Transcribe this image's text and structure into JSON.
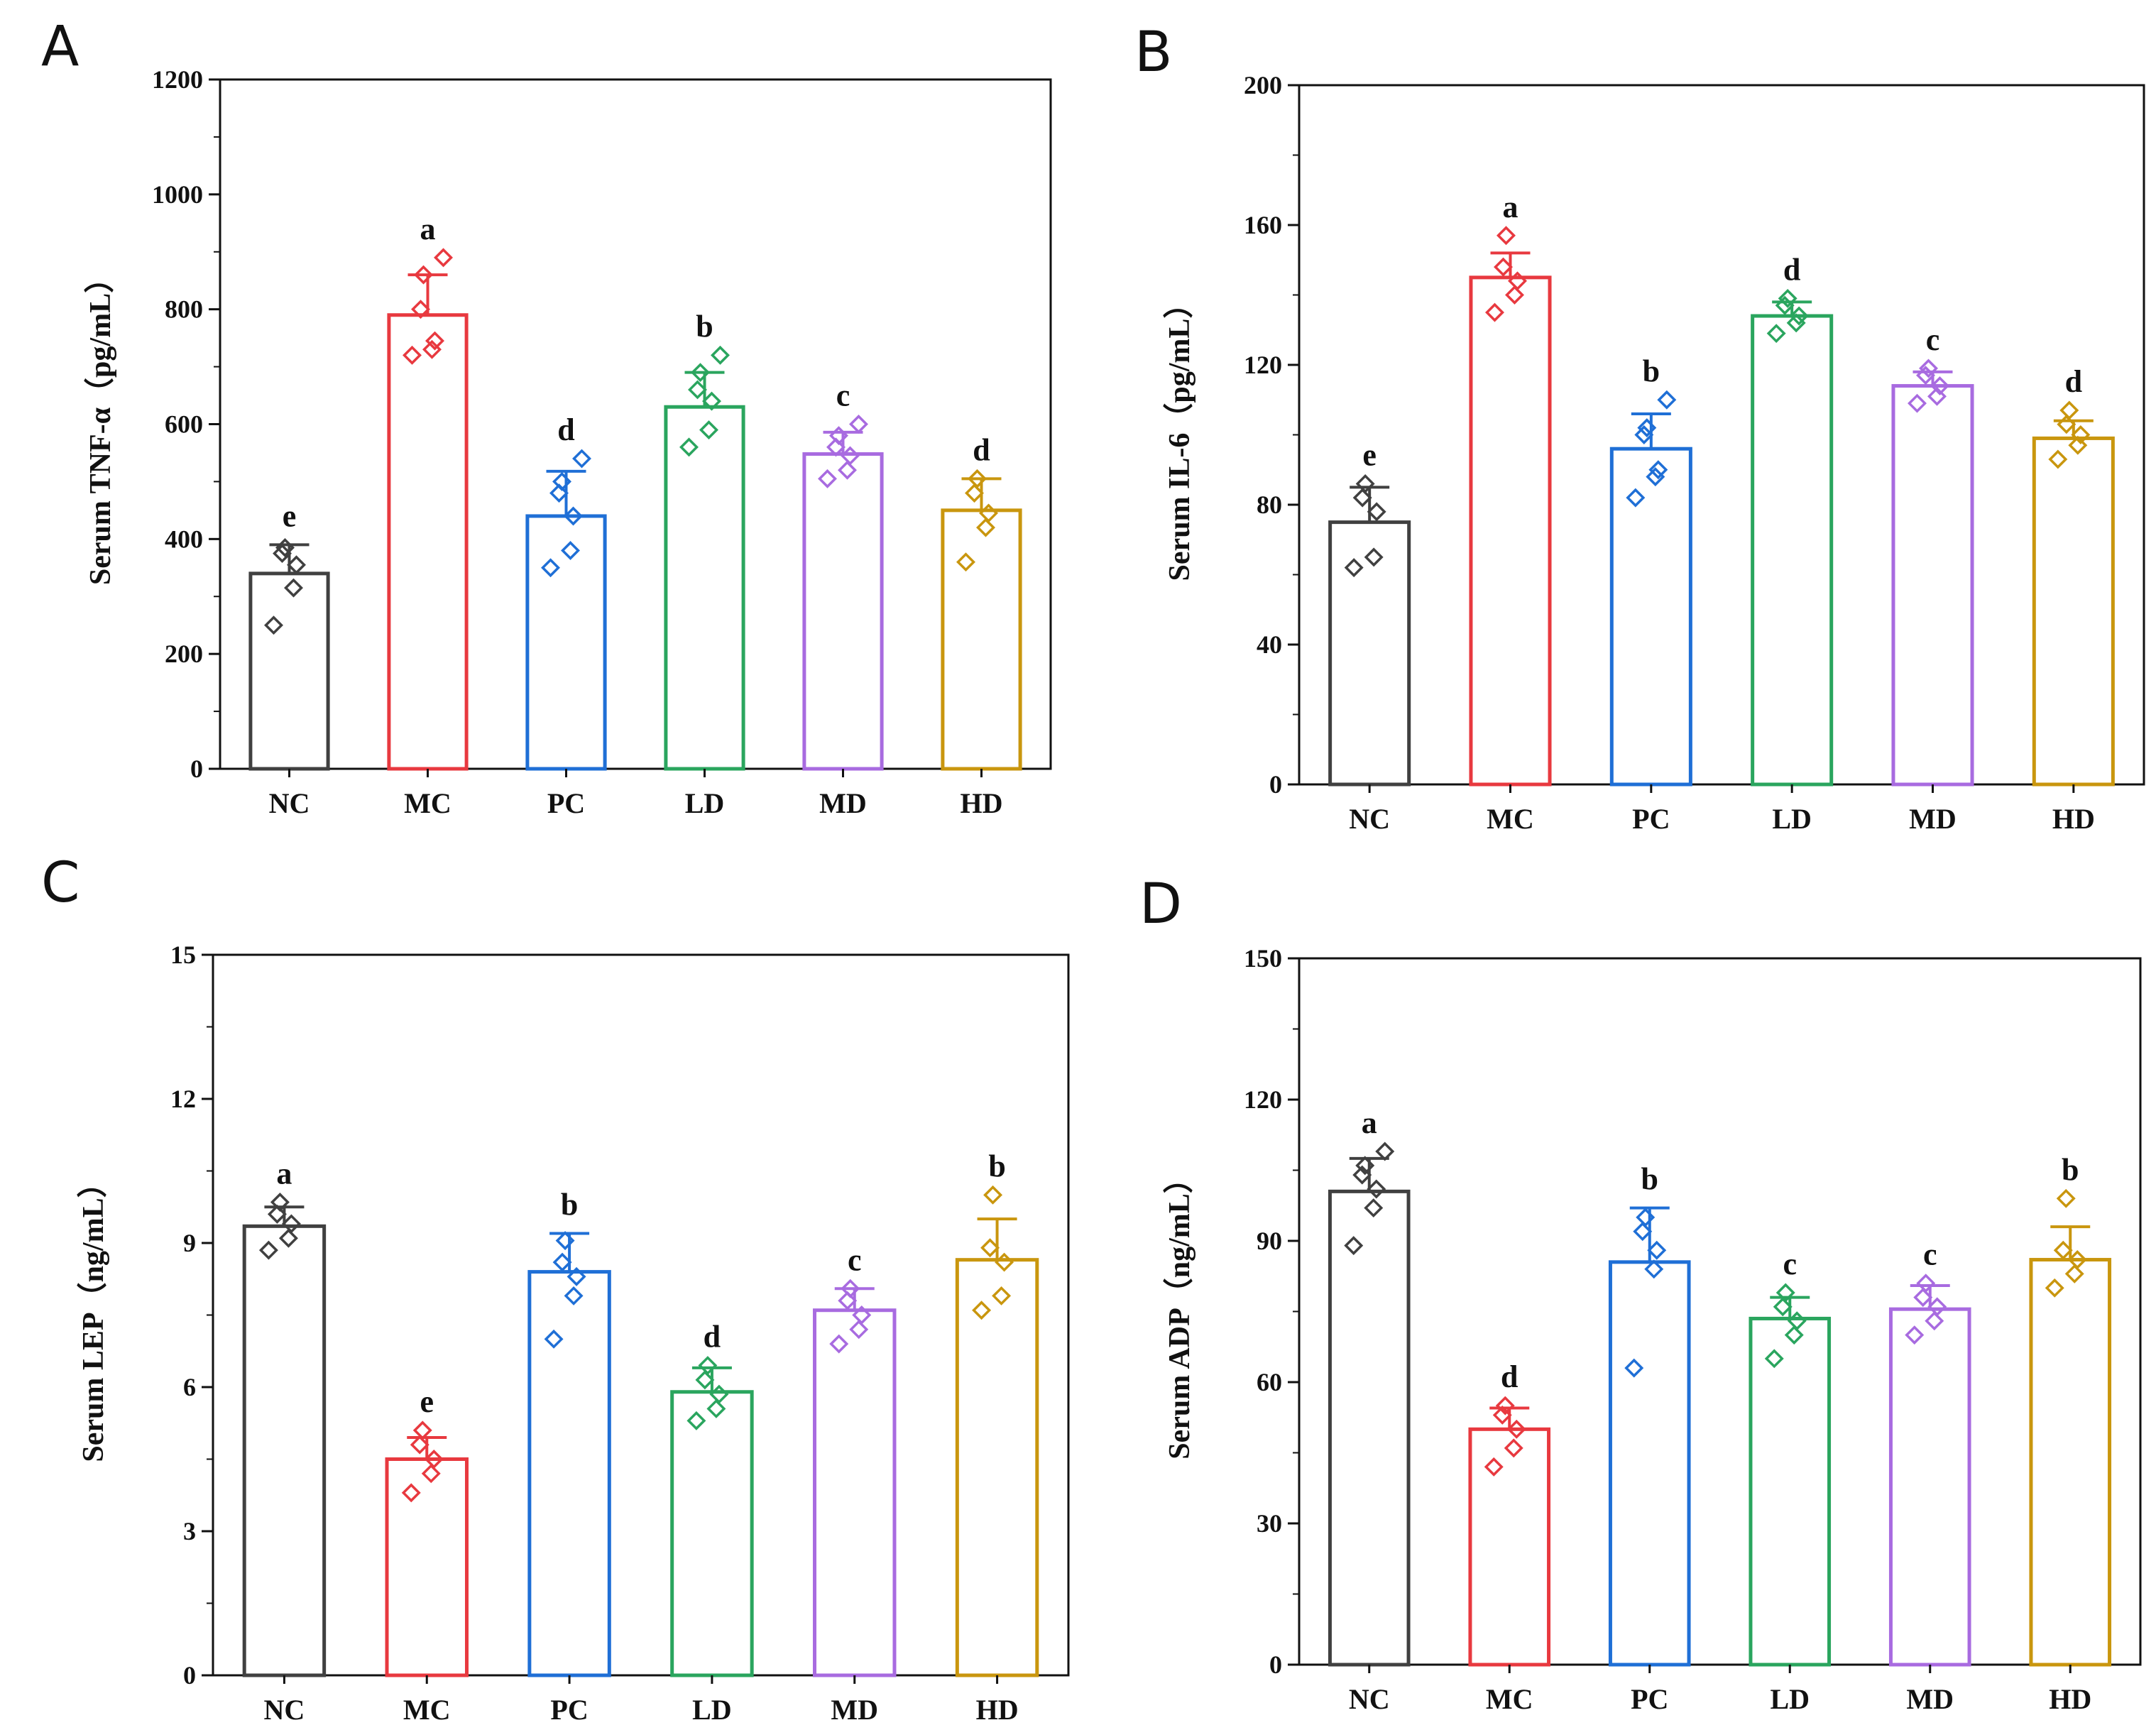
{
  "colors": {
    "NC": "#404040",
    "MC": "#e8393f",
    "PC": "#1f6fd6",
    "LD": "#2aa55e",
    "MD": "#a86be0",
    "HD": "#c9960e"
  },
  "chart_data": [
    {
      "panel": "A",
      "type": "bar",
      "ylabel": "Serum  TNF-α（pg/mL）",
      "categories": [
        "NC",
        "MC",
        "PC",
        "LD",
        "MD",
        "HD"
      ],
      "values": [
        340,
        790,
        440,
        630,
        548,
        450
      ],
      "errors": [
        50,
        70,
        78,
        60,
        38,
        55
      ],
      "significance": [
        "e",
        "a",
        "d",
        "b",
        "c",
        "d"
      ],
      "points": [
        [
          250,
          315,
          355,
          375,
          385
        ],
        [
          720,
          730,
          745,
          800,
          860,
          890
        ],
        [
          350,
          380,
          440,
          480,
          500,
          540
        ],
        [
          560,
          590,
          640,
          660,
          690,
          720
        ],
        [
          505,
          520,
          545,
          560,
          580,
          600
        ],
        [
          360,
          420,
          445,
          480,
          505
        ]
      ],
      "ylim": [
        0,
        1200
      ],
      "yticks": [
        "0",
        "200",
        "400",
        "600",
        "800",
        "1000",
        "1200"
      ]
    },
    {
      "panel": "B",
      "type": "bar",
      "ylabel": "Serum  IL-6（pg/mL）",
      "categories": [
        "NC",
        "MC",
        "PC",
        "LD",
        "MD",
        "HD"
      ],
      "values": [
        75,
        145,
        96,
        134,
        114,
        99
      ],
      "errors": [
        10,
        7,
        10,
        4,
        4,
        5
      ],
      "significance": [
        "e",
        "a",
        "b",
        "d",
        "c",
        "d"
      ],
      "points": [
        [
          62,
          65,
          78,
          82,
          86
        ],
        [
          135,
          140,
          144,
          148,
          157
        ],
        [
          82,
          88,
          90,
          100,
          102,
          110
        ],
        [
          129,
          132,
          134,
          137,
          139
        ],
        [
          109,
          111,
          114,
          117,
          119
        ],
        [
          93,
          97,
          100,
          103,
          107
        ]
      ],
      "ylim": [
        0,
        200
      ],
      "yticks": [
        "0",
        "40",
        "80",
        "120",
        "160",
        "200"
      ]
    },
    {
      "panel": "C",
      "type": "bar",
      "ylabel": "Serum  LEP（ng/mL）",
      "categories": [
        "NC",
        "MC",
        "PC",
        "LD",
        "MD",
        "HD"
      ],
      "values": [
        9.35,
        4.5,
        8.4,
        5.9,
        7.6,
        8.65
      ],
      "errors": [
        0.4,
        0.45,
        0.8,
        0.5,
        0.45,
        0.85
      ],
      "significance": [
        "a",
        "e",
        "b",
        "d",
        "c",
        "b"
      ],
      "points": [
        [
          8.85,
          9.1,
          9.4,
          9.6,
          9.85
        ],
        [
          3.8,
          4.2,
          4.5,
          4.8,
          5.1
        ],
        [
          7.0,
          7.9,
          8.3,
          8.6,
          9.05
        ],
        [
          5.3,
          5.55,
          5.85,
          6.15,
          6.45
        ],
        [
          6.9,
          7.2,
          7.5,
          7.8,
          8.05
        ],
        [
          7.6,
          7.9,
          8.6,
          8.9,
          10.0
        ]
      ],
      "ylim": [
        0,
        15
      ],
      "yticks": [
        "0",
        "3",
        "6",
        "9",
        "12",
        "15"
      ]
    },
    {
      "panel": "D",
      "type": "bar",
      "ylabel": "Serum  ADP（ng/mL）",
      "categories": [
        "NC",
        "MC",
        "PC",
        "LD",
        "MD",
        "HD"
      ],
      "values": [
        100.5,
        50,
        85.5,
        73.5,
        75.5,
        86
      ],
      "errors": [
        7,
        4.5,
        11.5,
        4.5,
        5,
        7
      ],
      "significance": [
        "a",
        "d",
        "b",
        "c",
        "c",
        "b"
      ],
      "points": [
        [
          89,
          97,
          101,
          104,
          106,
          109
        ],
        [
          42,
          46,
          50,
          53,
          55
        ],
        [
          63,
          84,
          88,
          92,
          95
        ],
        [
          65,
          70,
          73,
          76,
          79
        ],
        [
          70,
          73,
          76,
          78,
          81
        ],
        [
          80,
          83,
          86,
          88,
          99
        ]
      ],
      "ylim": [
        0,
        150
      ],
      "yticks": [
        "0",
        "30",
        "60",
        "90",
        "120",
        "150"
      ]
    }
  ]
}
